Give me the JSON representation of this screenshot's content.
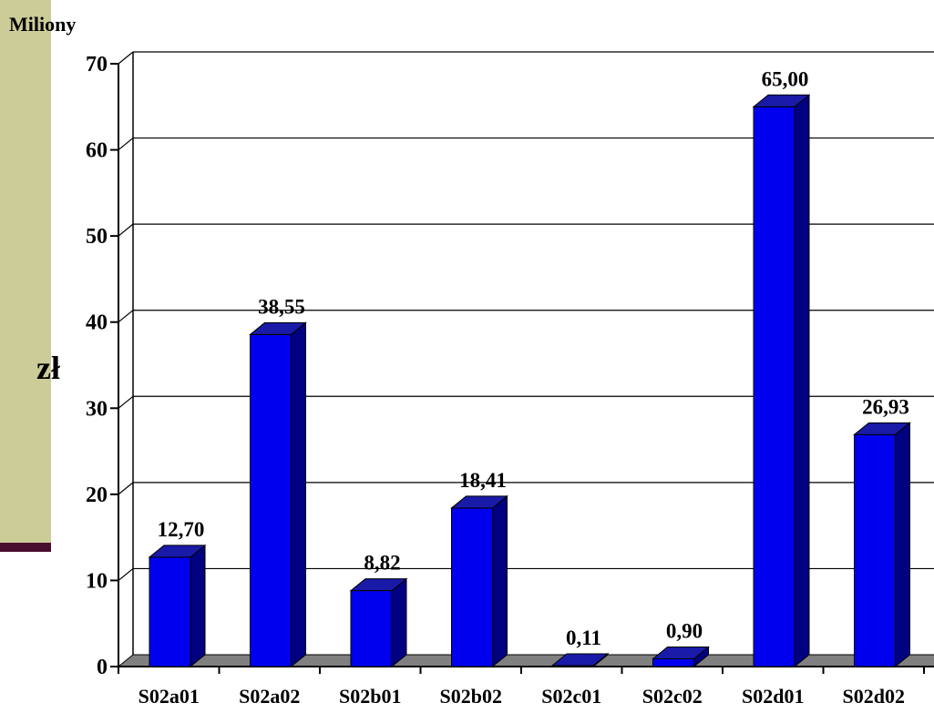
{
  "chart_data": {
    "type": "bar",
    "units_label": "Miliony",
    "ylabel": "zł",
    "xlabel": "",
    "categories": [
      "S02a01",
      "S02a02",
      "S02b01",
      "S02b02",
      "S02c01",
      "S02c02",
      "S02d01",
      "S02d02"
    ],
    "values": [
      12.7,
      38.55,
      8.82,
      18.41,
      0.11,
      0.9,
      65.0,
      26.93
    ],
    "value_labels": [
      "12,70",
      "38,55",
      "8,82",
      "18,41",
      "0,11",
      "0,90",
      "65,00",
      "26,93"
    ],
    "ylim": [
      0,
      70
    ],
    "yticks": [
      0,
      10,
      20,
      30,
      40,
      50,
      60,
      70
    ],
    "ytick_labels": [
      "0",
      "10",
      "20",
      "30",
      "40",
      "50",
      "60",
      "70"
    ],
    "grid": true,
    "style": "3d-bar",
    "colors": {
      "bar_front": "#0000ee",
      "bar_top": "#1a1aa8",
      "bar_side": "#000080",
      "floor": "#808080",
      "wall": "#ffffff",
      "gridline": "#000000",
      "slide_panel": "#cccc99",
      "slide_bar": "#4a0e2e"
    }
  }
}
